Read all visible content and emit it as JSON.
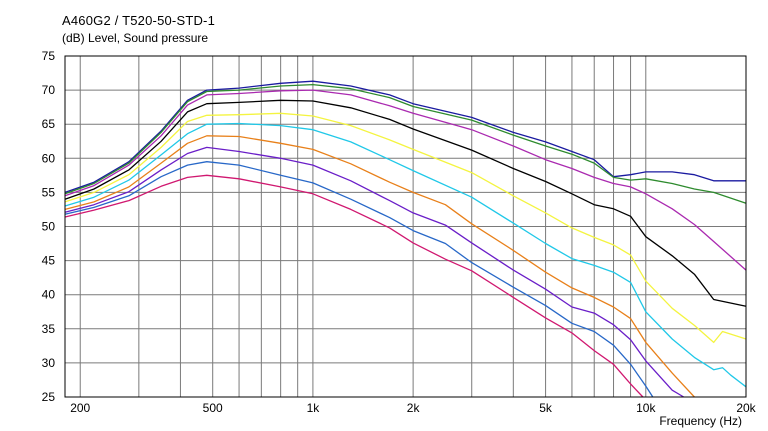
{
  "chart_data": {
    "type": "line",
    "title": "A460G2 / T520-50-STD-1",
    "subtitle": "(dB)  Level, Sound pressure",
    "xlabel": "Frequency  (Hz)",
    "ylabel": "",
    "xscale": "log",
    "xlim": [
      180,
      20000
    ],
    "ylim": [
      25,
      75
    ],
    "grid": true,
    "legend": "none",
    "x_tick_labels": [
      {
        "value": 200,
        "label": "200"
      },
      {
        "value": 500,
        "label": "500"
      },
      {
        "value": 1000,
        "label": "1k"
      },
      {
        "value": 2000,
        "label": "2k"
      },
      {
        "value": 5000,
        "label": "5k"
      },
      {
        "value": 10000,
        "label": "10k"
      },
      {
        "value": 20000,
        "label": "20k"
      }
    ],
    "y_ticks": [
      25,
      30,
      35,
      40,
      45,
      50,
      55,
      60,
      65,
      70,
      75
    ],
    "series": [
      {
        "color": "#1a1aa0",
        "points": [
          [
            180,
            55
          ],
          [
            220,
            56.5
          ],
          [
            280,
            59.5
          ],
          [
            350,
            64
          ],
          [
            420,
            68.5
          ],
          [
            480,
            70
          ],
          [
            600,
            70.3
          ],
          [
            800,
            71
          ],
          [
            1000,
            71.3
          ],
          [
            1300,
            70.6
          ],
          [
            1700,
            69.3
          ],
          [
            2000,
            68
          ],
          [
            3000,
            66
          ],
          [
            4000,
            63.8
          ],
          [
            5000,
            62.4
          ],
          [
            6000,
            61
          ],
          [
            7000,
            59.8
          ],
          [
            8000,
            57.3
          ],
          [
            9000,
            57.6
          ],
          [
            10000,
            58
          ],
          [
            12000,
            58
          ],
          [
            14000,
            57.6
          ],
          [
            16000,
            56.7
          ],
          [
            20000,
            56.7
          ]
        ]
      },
      {
        "color": "#2e8b2e",
        "points": [
          [
            180,
            54.8
          ],
          [
            220,
            56.3
          ],
          [
            280,
            59.3
          ],
          [
            350,
            63.8
          ],
          [
            420,
            68.3
          ],
          [
            480,
            69.8
          ],
          [
            600,
            70
          ],
          [
            800,
            70.6
          ],
          [
            1000,
            70.8
          ],
          [
            1300,
            70.2
          ],
          [
            1700,
            68.9
          ],
          [
            2000,
            67.6
          ],
          [
            3000,
            65.6
          ],
          [
            4000,
            63.4
          ],
          [
            5000,
            61.8
          ],
          [
            6000,
            60.6
          ],
          [
            7000,
            59.3
          ],
          [
            8000,
            57.2
          ],
          [
            9000,
            56.8
          ],
          [
            10000,
            57
          ],
          [
            12000,
            56.3
          ],
          [
            14000,
            55.5
          ],
          [
            16000,
            55
          ],
          [
            20000,
            53.4
          ]
        ]
      },
      {
        "color": "#aa2ab0",
        "points": [
          [
            180,
            54.5
          ],
          [
            220,
            56
          ],
          [
            280,
            59
          ],
          [
            350,
            63.3
          ],
          [
            420,
            67.8
          ],
          [
            480,
            69.3
          ],
          [
            600,
            69.5
          ],
          [
            800,
            69.9
          ],
          [
            1000,
            70
          ],
          [
            1300,
            69.3
          ],
          [
            1700,
            67.7
          ],
          [
            2000,
            66.6
          ],
          [
            3000,
            64.2
          ],
          [
            4000,
            61.8
          ],
          [
            5000,
            59.8
          ],
          [
            6000,
            58.5
          ],
          [
            7000,
            57.2
          ],
          [
            8000,
            56.3
          ],
          [
            9000,
            55.8
          ],
          [
            10000,
            54.8
          ],
          [
            12000,
            52.6
          ],
          [
            14000,
            50.3
          ],
          [
            16000,
            47.8
          ],
          [
            20000,
            43.6
          ]
        ]
      },
      {
        "color": "#000000",
        "points": [
          [
            180,
            54
          ],
          [
            220,
            55.5
          ],
          [
            280,
            58.3
          ],
          [
            350,
            62.5
          ],
          [
            420,
            66.8
          ],
          [
            480,
            68
          ],
          [
            600,
            68.2
          ],
          [
            800,
            68.5
          ],
          [
            1000,
            68.4
          ],
          [
            1300,
            67.4
          ],
          [
            1700,
            65.7
          ],
          [
            2000,
            64.3
          ],
          [
            3000,
            61.2
          ],
          [
            4000,
            58.5
          ],
          [
            5000,
            56.6
          ],
          [
            6000,
            54.8
          ],
          [
            7000,
            53.2
          ],
          [
            8000,
            52.6
          ],
          [
            9000,
            51.5
          ],
          [
            10000,
            48.5
          ],
          [
            12000,
            45.7
          ],
          [
            14000,
            43
          ],
          [
            16000,
            39.3
          ],
          [
            20000,
            38.3
          ]
        ]
      },
      {
        "color": "#f4f440",
        "points": [
          [
            180,
            53.6
          ],
          [
            220,
            55
          ],
          [
            280,
            57.6
          ],
          [
            350,
            61.6
          ],
          [
            420,
            65.4
          ],
          [
            480,
            66.3
          ],
          [
            600,
            66.4
          ],
          [
            800,
            66.6
          ],
          [
            1000,
            66.2
          ],
          [
            1300,
            64.8
          ],
          [
            1700,
            62.7
          ],
          [
            2000,
            61.3
          ],
          [
            3000,
            57.9
          ],
          [
            4000,
            54.5
          ],
          [
            5000,
            52
          ],
          [
            6000,
            49.8
          ],
          [
            7000,
            48.4
          ],
          [
            8000,
            47.3
          ],
          [
            9000,
            45.8
          ],
          [
            10000,
            42
          ],
          [
            12000,
            38
          ],
          [
            14000,
            35.5
          ],
          [
            16000,
            33
          ],
          [
            17000,
            34.6
          ],
          [
            20000,
            33.5
          ]
        ]
      },
      {
        "color": "#20c8e8",
        "points": [
          [
            180,
            53
          ],
          [
            220,
            54.3
          ],
          [
            280,
            56.8
          ],
          [
            350,
            60.5
          ],
          [
            420,
            63.6
          ],
          [
            480,
            65
          ],
          [
            600,
            65.1
          ],
          [
            800,
            64.8
          ],
          [
            1000,
            64.2
          ],
          [
            1300,
            62.4
          ],
          [
            1700,
            59.8
          ],
          [
            2000,
            58.2
          ],
          [
            3000,
            54.3
          ],
          [
            4000,
            50.5
          ],
          [
            5000,
            47.5
          ],
          [
            6000,
            45.3
          ],
          [
            7000,
            44.3
          ],
          [
            8000,
            43.3
          ],
          [
            9000,
            41.8
          ],
          [
            10000,
            37.5
          ],
          [
            12000,
            33.5
          ],
          [
            14000,
            30.8
          ],
          [
            16000,
            29
          ],
          [
            17000,
            29.3
          ],
          [
            18000,
            28.2
          ],
          [
            20000,
            26.5
          ]
        ]
      },
      {
        "color": "#e8801a",
        "points": [
          [
            180,
            52.5
          ],
          [
            220,
            53.6
          ],
          [
            280,
            55.8
          ],
          [
            350,
            59.3
          ],
          [
            420,
            62.2
          ],
          [
            480,
            63.3
          ],
          [
            600,
            63.2
          ],
          [
            800,
            62.2
          ],
          [
            1000,
            61.3
          ],
          [
            1300,
            59.2
          ],
          [
            1700,
            56.5
          ],
          [
            2000,
            55
          ],
          [
            2500,
            53.2
          ],
          [
            3000,
            50.4
          ],
          [
            4000,
            46.5
          ],
          [
            5000,
            43.3
          ],
          [
            6000,
            41
          ],
          [
            7000,
            39.6
          ],
          [
            8000,
            38.2
          ],
          [
            9000,
            36.5
          ],
          [
            10000,
            33
          ],
          [
            12000,
            28.5
          ],
          [
            14000,
            25
          ]
        ]
      },
      {
        "color": "#6a1ec8",
        "points": [
          [
            180,
            52.1
          ],
          [
            220,
            53.2
          ],
          [
            280,
            55.1
          ],
          [
            350,
            58.3
          ],
          [
            420,
            60.7
          ],
          [
            480,
            61.6
          ],
          [
            600,
            61
          ],
          [
            800,
            60
          ],
          [
            1000,
            59
          ],
          [
            1300,
            56.7
          ],
          [
            1700,
            53.8
          ],
          [
            2000,
            52
          ],
          [
            2500,
            50.2
          ],
          [
            3000,
            47.6
          ],
          [
            4000,
            43.6
          ],
          [
            5000,
            40.8
          ],
          [
            6000,
            38.2
          ],
          [
            7000,
            37.3
          ],
          [
            8000,
            35.6
          ],
          [
            9000,
            33.4
          ],
          [
            10000,
            30.3
          ],
          [
            12000,
            26
          ],
          [
            13000,
            25
          ]
        ]
      },
      {
        "color": "#2868c8",
        "points": [
          [
            180,
            51.8
          ],
          [
            220,
            52.8
          ],
          [
            280,
            54.5
          ],
          [
            350,
            57.3
          ],
          [
            420,
            59
          ],
          [
            480,
            59.5
          ],
          [
            600,
            59
          ],
          [
            800,
            57.5
          ],
          [
            1000,
            56.4
          ],
          [
            1300,
            54
          ],
          [
            1700,
            51.3
          ],
          [
            2000,
            49.4
          ],
          [
            2500,
            47.5
          ],
          [
            3000,
            44.7
          ],
          [
            4000,
            41.1
          ],
          [
            5000,
            38.4
          ],
          [
            6000,
            35.8
          ],
          [
            7000,
            34.6
          ],
          [
            8000,
            32.6
          ],
          [
            9000,
            29.8
          ],
          [
            10000,
            26.6
          ],
          [
            10500,
            25
          ]
        ]
      },
      {
        "color": "#d01870",
        "points": [
          [
            180,
            51.4
          ],
          [
            220,
            52.4
          ],
          [
            280,
            53.8
          ],
          [
            350,
            55.9
          ],
          [
            420,
            57.2
          ],
          [
            480,
            57.5
          ],
          [
            600,
            57
          ],
          [
            800,
            55.8
          ],
          [
            1000,
            54.8
          ],
          [
            1300,
            52.5
          ],
          [
            1700,
            49.8
          ],
          [
            2000,
            47.6
          ],
          [
            2500,
            45.2
          ],
          [
            3000,
            43.5
          ],
          [
            4000,
            39.6
          ],
          [
            5000,
            36.6
          ],
          [
            6000,
            34.4
          ],
          [
            7000,
            31.8
          ],
          [
            8000,
            29.8
          ],
          [
            9000,
            26.9
          ],
          [
            9800,
            25
          ]
        ]
      }
    ]
  }
}
